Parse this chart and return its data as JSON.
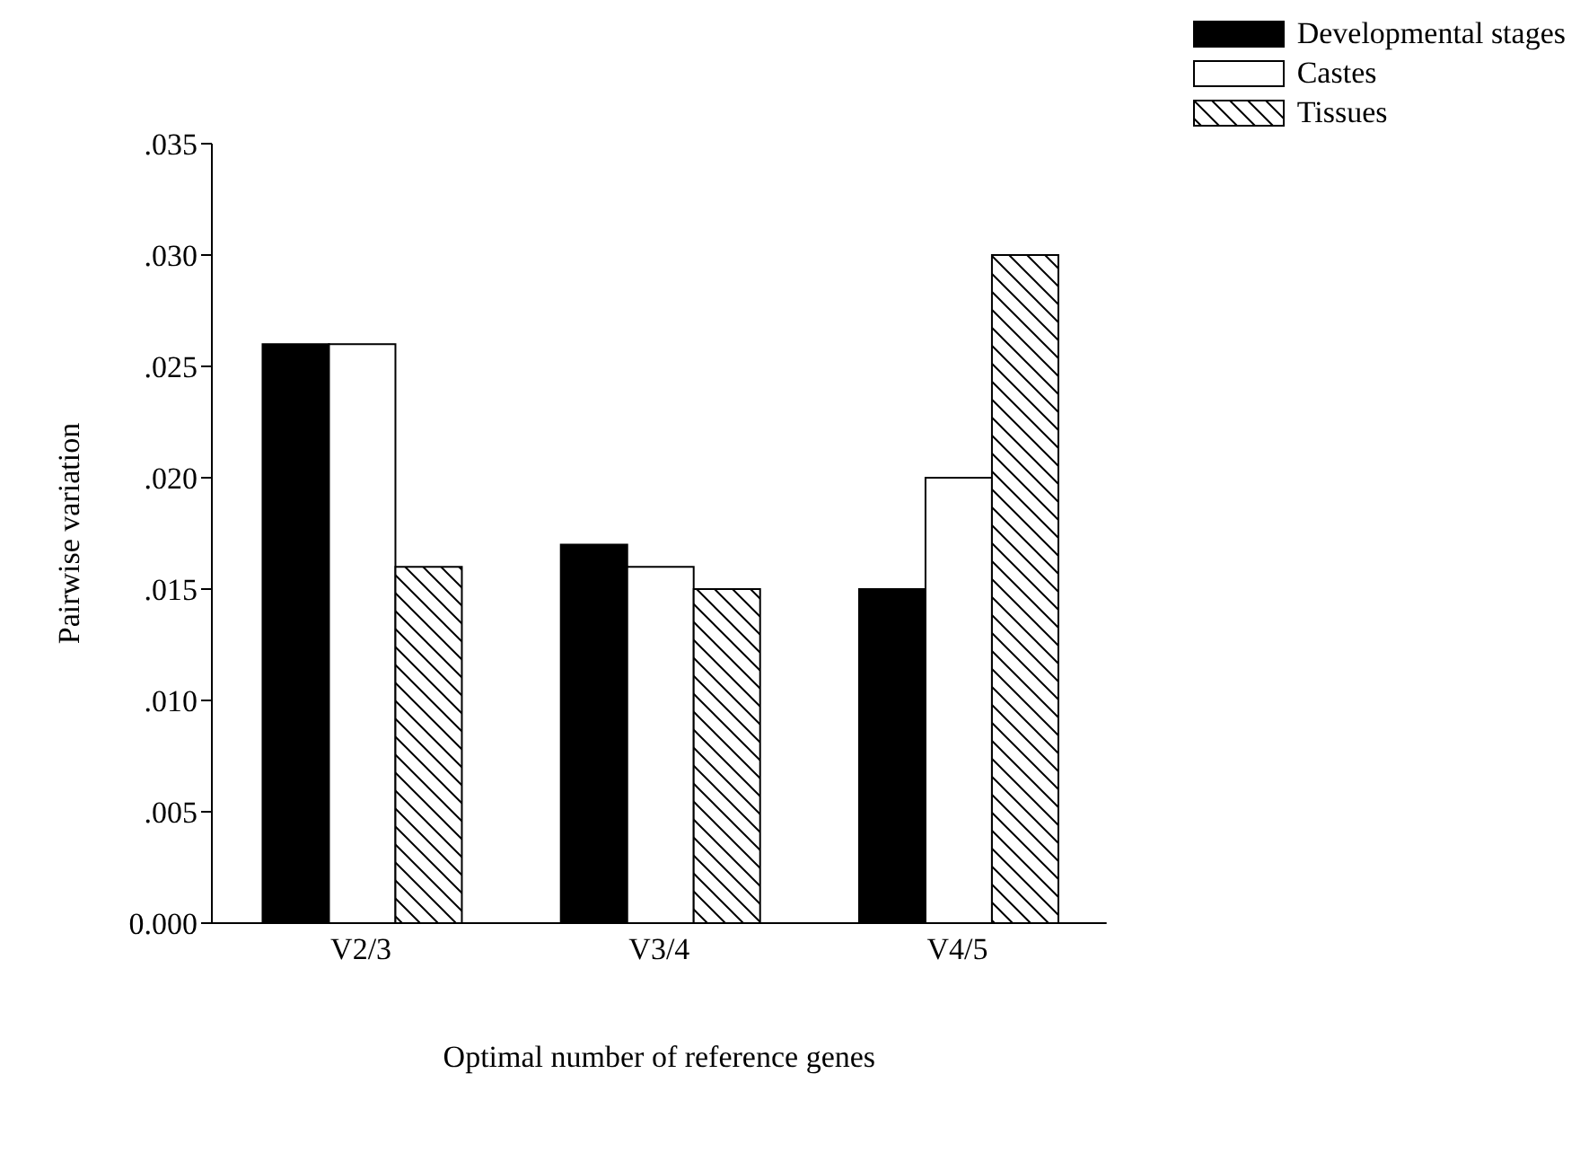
{
  "chart_data": {
    "type": "bar",
    "xlabel": "Optimal number of reference genes",
    "ylabel": "Pairwise variation",
    "categories": [
      "V2/3",
      "V3/4",
      "V4/5"
    ],
    "series": [
      {
        "name": "Developmental stages",
        "color": "#000000",
        "values": [
          0.026,
          0.017,
          0.015
        ]
      },
      {
        "name": "Castes",
        "color": "#ffffff",
        "values": [
          0.026,
          0.016,
          0.02
        ]
      },
      {
        "name": "Tissues",
        "color": "#000000",
        "values": [
          0.016,
          0.015,
          0.03
        ]
      }
    ],
    "ylim": [
      0,
      0.035
    ],
    "yticks": [
      {
        "value": 0,
        "label": "0.000"
      },
      {
        "value": 0.005,
        "label": ".005"
      },
      {
        "value": 0.01,
        "label": ".010"
      },
      {
        "value": 0.015,
        "label": ".015"
      },
      {
        "value": 0.02,
        "label": ".020"
      },
      {
        "value": 0.025,
        "label": ".025"
      },
      {
        "value": 0.03,
        "label": ".030"
      },
      {
        "value": 0.035,
        "label": ".035"
      }
    ],
    "grid": false,
    "legend": "top right"
  }
}
